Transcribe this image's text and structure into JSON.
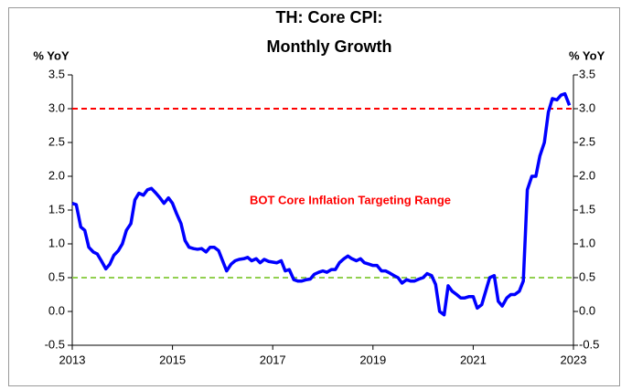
{
  "chart_data": {
    "type": "line",
    "title": [
      "TH: Core CPI:",
      "Monthly Growth"
    ],
    "y_label": "% YoY",
    "y2_label": "% YoY",
    "annotation": {
      "text": "BOT Core Inflation Targeting Range",
      "color": "#ff0000"
    },
    "reference_lines": [
      {
        "value": 3,
        "color": "#ff0000"
      },
      {
        "value": 0.5,
        "color": "#92d050"
      }
    ],
    "xlim": [
      2013,
      2023
    ],
    "xticks": [
      2013,
      2015,
      2017,
      2019,
      2021,
      2023
    ],
    "ylim": [
      -0.5,
      3.5
    ],
    "yticks": [
      -0.5,
      {
        "value": 0,
        "label": "0.0"
      },
      0.5,
      {
        "value": 1,
        "label": "1.0"
      },
      1.5,
      {
        "value": 2,
        "label": "2.0"
      },
      2.5,
      {
        "value": 3,
        "label": "3.0"
      },
      3.5
    ],
    "y2lim": [
      -0.5,
      3.5
    ],
    "y2ticks": [
      -0.5,
      {
        "value": 0,
        "label": "0.0"
      },
      0.5,
      {
        "value": 1,
        "label": "1.0"
      },
      1.5,
      {
        "value": 2,
        "label": "2.0"
      },
      2.5,
      {
        "value": 3,
        "label": "3.0"
      },
      3.5
    ],
    "series": [
      {
        "name": "Core CPI",
        "color": "#0000ff",
        "x": [
          2013.0,
          2013.08,
          2013.17,
          2013.25,
          2013.33,
          2013.42,
          2013.5,
          2013.58,
          2013.67,
          2013.75,
          2013.83,
          2013.92,
          2014.0,
          2014.08,
          2014.17,
          2014.25,
          2014.33,
          2014.42,
          2014.5,
          2014.58,
          2014.67,
          2014.75,
          2014.83,
          2014.92,
          2015.0,
          2015.08,
          2015.17,
          2015.25,
          2015.33,
          2015.42,
          2015.5,
          2015.58,
          2015.67,
          2015.75,
          2015.83,
          2015.92,
          2016.0,
          2016.08,
          2016.17,
          2016.25,
          2016.33,
          2016.42,
          2016.5,
          2016.58,
          2016.67,
          2016.75,
          2016.83,
          2016.92,
          2017.0,
          2017.08,
          2017.17,
          2017.25,
          2017.33,
          2017.42,
          2017.5,
          2017.58,
          2017.67,
          2017.75,
          2017.83,
          2017.92,
          2018.0,
          2018.08,
          2018.17,
          2018.25,
          2018.33,
          2018.42,
          2018.5,
          2018.58,
          2018.67,
          2018.75,
          2018.83,
          2018.92,
          2019.0,
          2019.08,
          2019.17,
          2019.25,
          2019.33,
          2019.42,
          2019.5,
          2019.58,
          2019.67,
          2019.75,
          2019.83,
          2019.92,
          2020.0,
          2020.08,
          2020.17,
          2020.25,
          2020.33,
          2020.42,
          2020.5,
          2020.58,
          2020.67,
          2020.75,
          2020.83,
          2020.92,
          2021.0,
          2021.08,
          2021.17,
          2021.25,
          2021.33,
          2021.42,
          2021.5,
          2021.58,
          2021.67,
          2021.75,
          2021.83,
          2021.92,
          2022.0,
          2022.08,
          2022.17,
          2022.25,
          2022.33,
          2022.42,
          2022.5,
          2022.58,
          2022.67,
          2022.75,
          2022.83,
          2022.92
        ],
        "values": [
          1.6,
          1.58,
          1.25,
          1.2,
          0.95,
          0.88,
          0.85,
          0.75,
          0.63,
          0.7,
          0.83,
          0.9,
          1.0,
          1.2,
          1.3,
          1.65,
          1.75,
          1.72,
          1.8,
          1.82,
          1.75,
          1.68,
          1.6,
          1.68,
          1.6,
          1.45,
          1.3,
          1.05,
          0.95,
          0.93,
          0.92,
          0.93,
          0.88,
          0.95,
          0.95,
          0.9,
          0.75,
          0.6,
          0.7,
          0.75,
          0.77,
          0.78,
          0.8,
          0.75,
          0.78,
          0.72,
          0.77,
          0.74,
          0.73,
          0.72,
          0.75,
          0.6,
          0.62,
          0.47,
          0.45,
          0.45,
          0.47,
          0.48,
          0.55,
          0.58,
          0.6,
          0.58,
          0.62,
          0.62,
          0.72,
          0.78,
          0.82,
          0.78,
          0.75,
          0.78,
          0.72,
          0.7,
          0.68,
          0.68,
          0.6,
          0.6,
          0.57,
          0.53,
          0.5,
          0.42,
          0.47,
          0.45,
          0.45,
          0.48,
          0.5,
          0.56,
          0.53,
          0.4,
          0.0,
          -0.05,
          0.38,
          0.3,
          0.25,
          0.2,
          0.2,
          0.22,
          0.22,
          0.05,
          0.1,
          0.3,
          0.5,
          0.53,
          0.15,
          0.08,
          0.2,
          0.25,
          0.25,
          0.3,
          0.45,
          1.8,
          2.0,
          2.0,
          2.3,
          2.5,
          2.95,
          3.15,
          3.13,
          3.2,
          3.22,
          3.05
        ]
      }
    ]
  }
}
